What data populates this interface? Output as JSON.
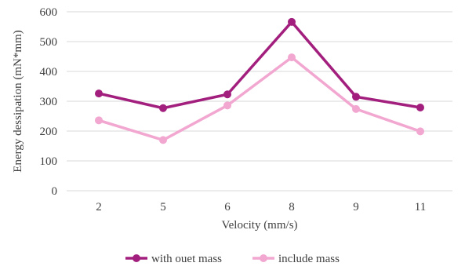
{
  "chart_data": {
    "type": "line",
    "title": "",
    "xlabel": "Velocity (mm/s)",
    "ylabel": "Energy dessipation (mN*mm)",
    "categories": [
      "2",
      "5",
      "6",
      "8",
      "9",
      "11"
    ],
    "ylim": [
      0,
      600
    ],
    "yticks": [
      0,
      100,
      200,
      300,
      400,
      500,
      600
    ],
    "grid": "y-major",
    "legend_position": "bottom",
    "series": [
      {
        "name": "with ouet mass",
        "color": "#A31F7E",
        "values": [
          326,
          277,
          323,
          566,
          315,
          279
        ]
      },
      {
        "name": "include mass",
        "color": "#F2A7D1",
        "values": [
          236,
          170,
          286,
          447,
          274,
          199
        ]
      }
    ]
  }
}
